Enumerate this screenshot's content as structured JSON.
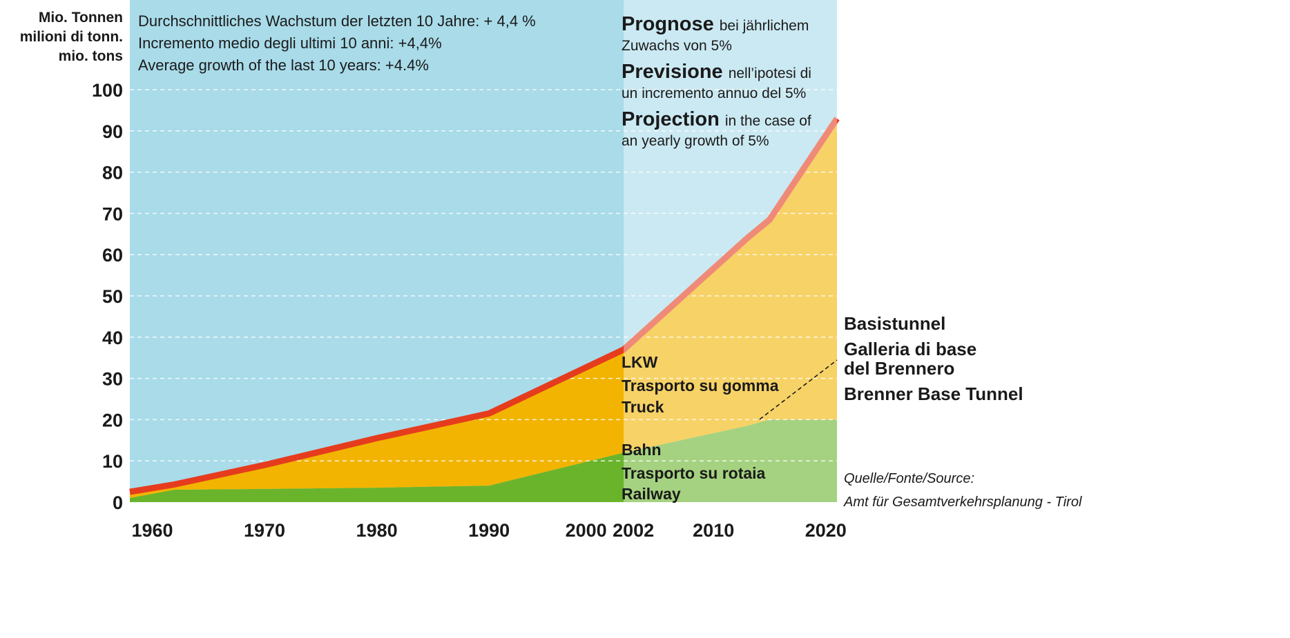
{
  "chart_data": {
    "type": "stacked_area",
    "ylabel": [
      "Mio. Tonnen",
      "milioni di tonn.",
      "mio. tons"
    ],
    "growth_note": [
      "Durchschnittliches Wachstum der letzten 10 Jahre: + 4,4 %",
      "Incremento medio degli ultimi 10 anni: +4,4%",
      "Average growth of the last 10 years: +4.4%"
    ],
    "projection_notes": [
      {
        "bold": "Prognose",
        "text": "bei jährlichem",
        "text2": "Zuwachs von 5%"
      },
      {
        "bold": "Previsione",
        "text": "nell’ipotesi di",
        "text2": "un incremento annuo del 5%"
      },
      {
        "bold": "Projection",
        "text": "in the case of",
        "text2": "an yearly growth of 5%"
      }
    ],
    "projection_start": 2002,
    "tunnel_label": [
      "Basistunnel",
      "Galleria di base",
      "del Brennero",
      "Brenner Base Tunnel"
    ],
    "source": [
      "Quelle/Fonte/Source:",
      "Amt für Gesamtverkehrsplanung - Tirol"
    ],
    "x": [
      1958,
      1962,
      1970,
      1980,
      1990,
      2002,
      2013,
      2015,
      2021
    ],
    "series": [
      {
        "name": [
          "Bahn",
          "Trasporto su rotaia",
          "Railway"
        ],
        "color": "#6ab42c",
        "values": [
          1,
          3,
          3.2,
          3.5,
          4,
          12,
          18.5,
          20,
          20
        ]
      },
      {
        "name": [
          "LKW",
          "Trasporto su gomma",
          "Truck"
        ],
        "color": "#f2b400",
        "values": [
          1.5,
          1.3,
          5.8,
          12,
          17.5,
          25,
          45.5,
          48.5,
          73
        ]
      }
    ],
    "line_color": "#e63c1e",
    "background": "#a9dbe9",
    "xlim": [
      1958,
      2021
    ],
    "xticks": [
      1960,
      1970,
      1980,
      1990,
      2000,
      2002,
      2010,
      2020
    ],
    "ylim": [
      0,
      100
    ],
    "yticks": [
      0,
      10,
      20,
      30,
      40,
      50,
      60,
      70,
      80,
      90,
      100
    ],
    "grid": true
  }
}
